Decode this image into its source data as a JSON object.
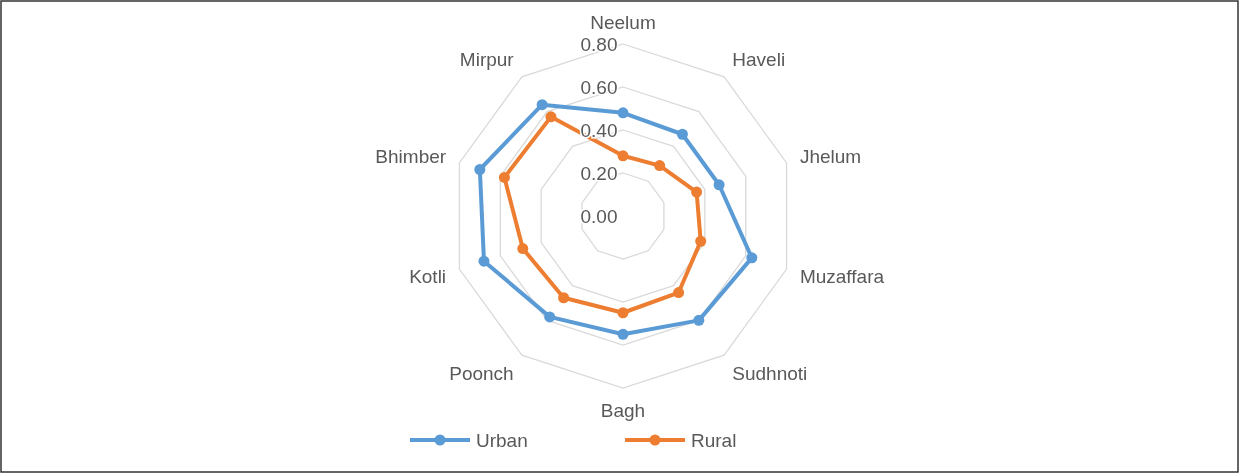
{
  "chart_data": {
    "type": "radar",
    "categories": [
      "Neelum",
      "Haveli",
      "Jhelum",
      "Muzaffara",
      "Sudhnoti",
      "Bagh",
      "Poonch",
      "Kotli",
      "Bhimber",
      "Mirpur"
    ],
    "series": [
      {
        "name": "Urban",
        "color": "#5b9bd5",
        "values": [
          0.48,
          0.47,
          0.47,
          0.63,
          0.6,
          0.55,
          0.58,
          0.68,
          0.7,
          0.64
        ]
      },
      {
        "name": "Rural",
        "color": "#ed7d31",
        "values": [
          0.28,
          0.29,
          0.36,
          0.38,
          0.44,
          0.45,
          0.47,
          0.49,
          0.58,
          0.57
        ]
      }
    ],
    "ylim": [
      0,
      0.8
    ],
    "yticks": [
      {
        "value": 0,
        "label": "0.00"
      },
      {
        "value": 0.2,
        "label": "0.20"
      },
      {
        "value": 0.4,
        "label": "0.40"
      },
      {
        "value": 0.6,
        "label": "0.60"
      },
      {
        "value": 0.8,
        "label": "0.80"
      }
    ],
    "grid": true,
    "legend": "bottom",
    "marker": "circle",
    "line_style": "solid"
  }
}
